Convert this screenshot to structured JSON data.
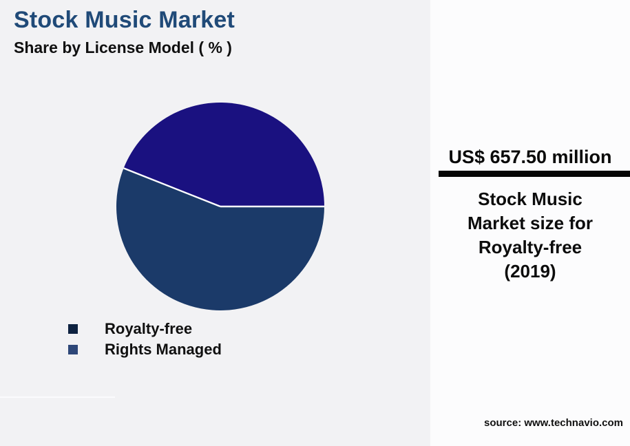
{
  "header": {
    "title": "Stock Music Market",
    "subtitle": "Share by License Model ( % )"
  },
  "chart_data": {
    "type": "pie",
    "title": "Stock Music Market",
    "subtitle": "Share by License Model ( % )",
    "unit": "%",
    "slices": [
      {
        "label": "Royalty-free",
        "value": 44,
        "color": "#1a1180"
      },
      {
        "label": "Rights Managed",
        "value": 56,
        "color": "#1b3a69"
      }
    ],
    "start_angle_deg": 0,
    "direction": "counterclockwise",
    "separator_color": "#ffffff",
    "legend_position": "bottom-left"
  },
  "legend": {
    "items": [
      {
        "label": "Royalty-free",
        "color": "#0e2240"
      },
      {
        "label": "Rights Managed",
        "color": "#2e4778"
      }
    ]
  },
  "panel": {
    "stat_value": "US$ 657.50 million",
    "caption": "Stock Music Market size for Royalty-free (2019)",
    "caption_lines": [
      "Stock Music",
      "Market size for",
      "Royalty-free",
      "(2019)"
    ],
    "source": "source: www.technavio.com"
  },
  "colors": {
    "background": "#f2f2f4",
    "panel_background": "#fcfcfd",
    "stat_bar": "#060606",
    "title": "#204a78",
    "text": "#101010"
  }
}
